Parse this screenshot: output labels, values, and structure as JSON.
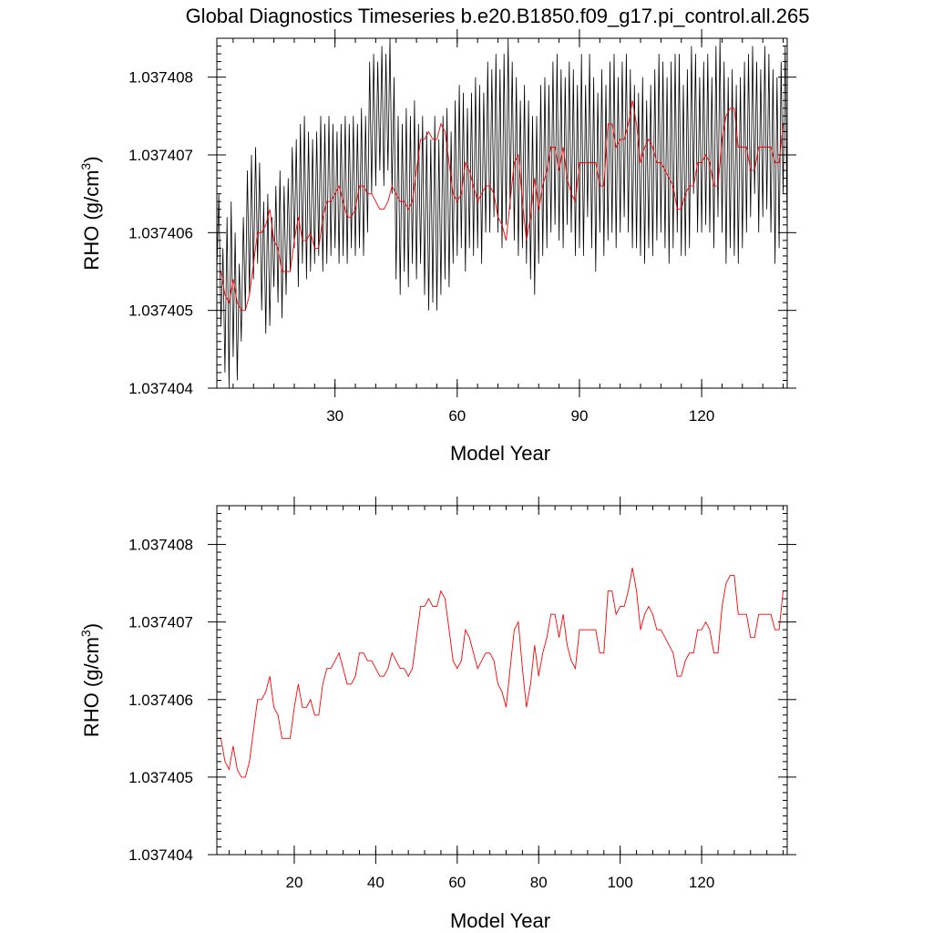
{
  "title": "Global Diagnostics Timeseries b.e20.B1850.f09_g17.pi_control.all.265",
  "colors": {
    "monthly": "#000000",
    "annual": "#ff0000"
  },
  "chart_data": [
    {
      "type": "line",
      "xlabel": "Model Year",
      "ylabel": "RHO (g/cm",
      "ylabel_sup": "3",
      "ylabel_close": ")",
      "xlim": [
        1,
        141
      ],
      "ylim": [
        1.037404,
        1.0374085
      ],
      "xticks": [
        30,
        60,
        90,
        120
      ],
      "xtick_labels": [
        "30",
        "60",
        "90",
        "120"
      ],
      "yticks": [
        1.037404,
        1.037405,
        1.037406,
        1.037407,
        1.037408
      ],
      "ytick_labels": [
        "1.037404",
        "1.037405",
        "1.037406",
        "1.037407",
        "1.037408"
      ],
      "series": [
        {
          "kind": "monthly",
          "color": "#000000",
          "x_start": 1,
          "x_step": 0.5,
          "values": [
            1.0374055,
            1.0374065,
            1.0374048,
            1.0374058,
            1.0374042,
            1.0374062,
            1.037404,
            1.0374064,
            1.0374044,
            1.037406,
            1.0374041,
            1.0374056,
            1.0374046,
            1.0374062,
            1.037405,
            1.0374068,
            1.0374052,
            1.037407,
            1.0374054,
            1.0374071,
            1.0374056,
            1.0374069,
            1.037405,
            1.0374064,
            1.0374047,
            1.0374065,
            1.0374048,
            1.0374062,
            1.0374053,
            1.0374066,
            1.0374051,
            1.0374068,
            1.0374049,
            1.0374066,
            1.0374052,
            1.0374067,
            1.0374055,
            1.0374071,
            1.0374058,
            1.0374072,
            1.0374053,
            1.0374074,
            1.0374056,
            1.0374075,
            1.0374054,
            1.0374073,
            1.0374055,
            1.0374072,
            1.0374056,
            1.0374073,
            1.0374057,
            1.0374075,
            1.0374055,
            1.0374074,
            1.0374056,
            1.0374075,
            1.0374057,
            1.0374074,
            1.0374058,
            1.0374073,
            1.0374056,
            1.0374074,
            1.0374057,
            1.0374075,
            1.0374056,
            1.0374074,
            1.0374058,
            1.0374075,
            1.0374057,
            1.0374074,
            1.0374058,
            1.0374076,
            1.0374057,
            1.0374075,
            1.037406,
            1.0374082,
            1.0374065,
            1.0374083,
            1.0374066,
            1.0374082,
            1.0374068,
            1.0374084,
            1.0374066,
            1.0374083,
            1.0374068,
            1.0374085,
            1.0374065,
            1.037408,
            1.0374054,
            1.0374075,
            1.0374052,
            1.0374074,
            1.0374055,
            1.0374076,
            1.0374053,
            1.0374075,
            1.0374056,
            1.0374077,
            1.0374054,
            1.0374074,
            1.0374056,
            1.0374075,
            1.0374052,
            1.0374073,
            1.037405,
            1.0374072,
            1.0374051,
            1.0374075,
            1.037405,
            1.0374072,
            1.0374052,
            1.0374075,
            1.0374054,
            1.0374076,
            1.0374053,
            1.0374073,
            1.0374056,
            1.0374077,
            1.0374057,
            1.0374079,
            1.0374058,
            1.0374078,
            1.0374055,
            1.0374076,
            1.0374058,
            1.0374078,
            1.0374057,
            1.037408,
            1.0374058,
            1.0374079,
            1.0374056,
            1.0374078,
            1.037406,
            1.0374082,
            1.037406,
            1.0374081,
            1.0374062,
            1.0374083,
            1.037406,
            1.0374081,
            1.0374058,
            1.0374083,
            1.0374061,
            1.0374085,
            1.0374063,
            1.0374082,
            1.0374059,
            1.037408,
            1.0374057,
            1.0374077,
            1.0374058,
            1.0374079,
            1.0374056,
            1.0374077,
            1.0374054,
            1.0374075,
            1.0374052,
            1.0374075,
            1.0374056,
            1.0374079,
            1.0374057,
            1.037408,
            1.0374058,
            1.0374079,
            1.037406,
            1.0374082,
            1.0374061,
            1.0374083,
            1.0374059,
            1.0374081,
            1.0374058,
            1.037408,
            1.0374061,
            1.0374082,
            1.037406,
            1.0374081,
            1.0374057,
            1.0374079,
            1.0374058,
            1.0374083,
            1.0374057,
            1.0374079,
            1.0374062,
            1.0374083,
            1.0374058,
            1.037408,
            1.0374055,
            1.0374078,
            1.037406,
            1.0374081,
            1.0374057,
            1.0374079,
            1.0374059,
            1.0374082,
            1.037406,
            1.0374083,
            1.0374058,
            1.037408,
            1.037406,
            1.0374082,
            1.0374062,
            1.0374083,
            1.037406,
            1.0374081,
            1.0374058,
            1.0374079,
            1.0374058,
            1.0374078,
            1.0374057,
            1.037408,
            1.0374056,
            1.0374077,
            1.0374058,
            1.0374079,
            1.0374057,
            1.0374081,
            1.0374059,
            1.0374083,
            1.037406,
            1.0374082,
            1.0374058,
            1.037408,
            1.0374056,
            1.0374082,
            1.0374058,
            1.0374083,
            1.037406,
            1.0374083,
            1.0374057,
            1.0374079,
            1.0374057,
            1.0374081,
            1.0374058,
            1.0374084,
            1.0374065,
            1.0374083,
            1.037406,
            1.037408,
            1.037406,
            1.0374082,
            1.0374061,
            1.0374083,
            1.037406,
            1.037408,
            1.0374058,
            1.0374084,
            1.0374062,
            1.0374085,
            1.037406,
            1.0374082,
            1.0374056,
            1.037408,
            1.0374058,
            1.0374081,
            1.0374057,
            1.0374079,
            1.0374056,
            1.037408,
            1.0374058,
            1.0374082,
            1.037406,
            1.0374083,
            1.0374062,
            1.0374084,
            1.0374065,
            1.0374082,
            1.037406,
            1.0374081,
            1.0374062,
            1.0374084,
            1.0374063,
            1.0374083,
            1.037406,
            1.0374081,
            1.0374056,
            1.037408,
            1.0374058,
            1.0374082,
            1.0374065,
            1.0374084,
            1.037406,
            1.0374082
          ]
        },
        {
          "kind": "annual",
          "color": "#ff0000",
          "x_start": 1,
          "x_step": 1,
          "values": [
            1.0374055,
            1.0374055,
            1.0374052,
            1.0374051,
            1.0374054,
            1.0374051,
            1.037405,
            1.037405,
            1.0374052,
            1.0374056,
            1.037406,
            1.037406,
            1.0374061,
            1.0374063,
            1.0374059,
            1.0374058,
            1.0374055,
            1.0374055,
            1.0374055,
            1.0374059,
            1.0374062,
            1.0374059,
            1.0374059,
            1.037406,
            1.0374058,
            1.0374058,
            1.0374062,
            1.0374064,
            1.0374064,
            1.0374065,
            1.0374066,
            1.0374064,
            1.0374062,
            1.0374062,
            1.0374063,
            1.0374066,
            1.0374066,
            1.0374065,
            1.0374065,
            1.0374064,
            1.0374063,
            1.0374063,
            1.0374064,
            1.0374066,
            1.0374065,
            1.0374064,
            1.0374064,
            1.0374063,
            1.0374064,
            1.0374068,
            1.0374072,
            1.0374072,
            1.0374073,
            1.0374072,
            1.0374072,
            1.0374074,
            1.0374073,
            1.0374069,
            1.0374065,
            1.0374064,
            1.0374065,
            1.0374069,
            1.0374068,
            1.0374066,
            1.0374064,
            1.0374065,
            1.0374066,
            1.0374066,
            1.0374065,
            1.0374062,
            1.0374061,
            1.0374059,
            1.0374064,
            1.0374069,
            1.037407,
            1.0374064,
            1.0374059,
            1.0374062,
            1.0374067,
            1.0374063,
            1.0374066,
            1.0374068,
            1.0374071,
            1.0374071,
            1.0374068,
            1.0374071,
            1.0374067,
            1.0374065,
            1.0374064,
            1.0374069,
            1.0374069,
            1.0374069,
            1.0374069,
            1.0374069,
            1.0374066,
            1.0374066,
            1.0374074,
            1.0374074,
            1.0374071,
            1.0374072,
            1.0374072,
            1.0374074,
            1.0374077,
            1.0374074,
            1.0374069,
            1.0374071,
            1.0374072,
            1.0374071,
            1.0374069,
            1.0374069,
            1.0374068,
            1.0374067,
            1.0374066,
            1.0374063,
            1.0374063,
            1.0374065,
            1.0374066,
            1.0374066,
            1.0374069,
            1.0374069,
            1.037407,
            1.0374069,
            1.0374066,
            1.0374066,
            1.0374072,
            1.0374075,
            1.0374076,
            1.0374076,
            1.0374071,
            1.0374071,
            1.0374071,
            1.0374068,
            1.0374068,
            1.0374071,
            1.0374071,
            1.0374071,
            1.0374071,
            1.0374069,
            1.0374069,
            1.0374074,
            1.0374074
          ]
        }
      ]
    },
    {
      "type": "line",
      "xlabel": "Model Year",
      "ylabel": "RHO (g/cm",
      "ylabel_sup": "3",
      "ylabel_close": ")",
      "xlim": [
        1,
        141
      ],
      "ylim": [
        1.037404,
        1.0374085
      ],
      "xticks": [
        20,
        40,
        60,
        80,
        100,
        120
      ],
      "xtick_labels": [
        "20",
        "40",
        "60",
        "80",
        "100",
        "120"
      ],
      "yticks": [
        1.037404,
        1.037405,
        1.037406,
        1.037407,
        1.037408
      ],
      "ytick_labels": [
        "1.037404",
        "1.037405",
        "1.037406",
        "1.037407",
        "1.037408"
      ],
      "series": [
        {
          "kind": "annual",
          "color": "#ff0000",
          "x_start": 1,
          "x_step": 1,
          "ref": "annual"
        }
      ]
    }
  ]
}
